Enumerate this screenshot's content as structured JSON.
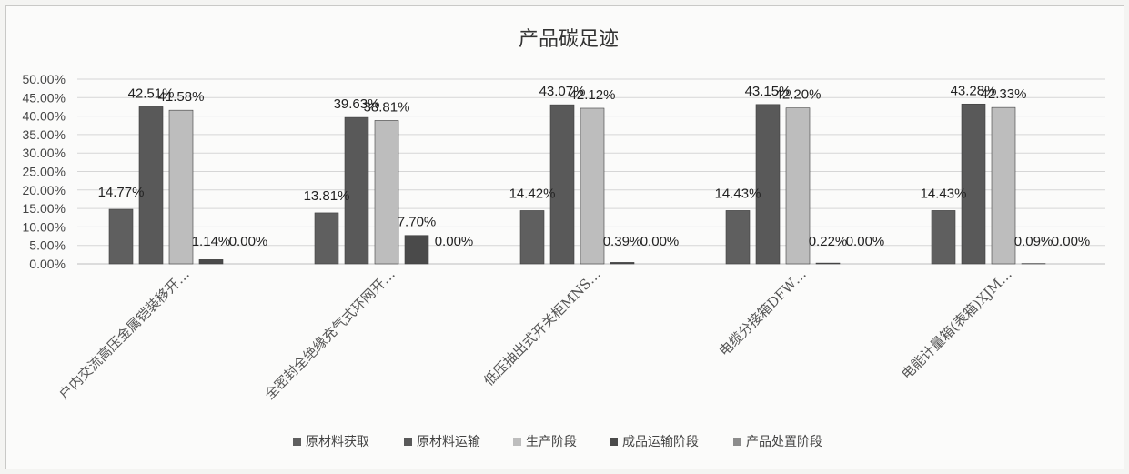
{
  "chart_data": {
    "type": "bar",
    "title": "产品碳足迹",
    "xlabel": "",
    "ylabel": "",
    "ylim": [
      0,
      0.5
    ],
    "y_tick_labels": [
      "0.00%",
      "5.00%",
      "10.00%",
      "15.00%",
      "20.00%",
      "25.00%",
      "30.00%",
      "35.00%",
      "40.00%",
      "45.00%",
      "50.00%"
    ],
    "y_tick_values": [
      0,
      0.05,
      0.1,
      0.15,
      0.2,
      0.25,
      0.3,
      0.35,
      0.4,
      0.45,
      0.5
    ],
    "grid": true,
    "legend_position": "bottom",
    "categories": [
      "户内交流高压金属铠装移开…",
      "全密封全绝缘充气式环网开…",
      "低压抽出式开关柜MNS…",
      "电缆分接箱DFW…",
      "电能计量箱(表箱)XJM…"
    ],
    "series": [
      {
        "name": "原材料获取",
        "color": "#5f5f5f",
        "values": [
          0.1477,
          0.1381,
          0.1442,
          0.1443,
          0.1443
        ],
        "labels": [
          "14.77%",
          "13.81%",
          "14.42%",
          "14.43%",
          "14.43%"
        ]
      },
      {
        "name": "原材料运输",
        "color": "#595959",
        "values": [
          0.4251,
          0.3963,
          0.4307,
          0.4315,
          0.4328
        ],
        "labels": [
          "42.51%",
          "39.63%",
          "43.07%",
          "43.15%",
          "43.28%"
        ]
      },
      {
        "name": "生产阶段",
        "color": "#bdbdbd",
        "values": [
          0.4158,
          0.3881,
          0.4212,
          0.422,
          0.4233
        ],
        "labels": [
          "41.58%",
          "38.81%",
          "42.12%",
          "42.20%",
          "42.33%"
        ]
      },
      {
        "name": "成品运输阶段",
        "color": "#4a4a4a",
        "values": [
          0.0114,
          0.077,
          0.0039,
          0.0022,
          0.0009
        ],
        "labels": [
          "1.14%",
          "7.70%",
          "0.39%",
          "0.22%",
          "0.09%"
        ]
      },
      {
        "name": "产品处置阶段",
        "color": "#8c8c8c",
        "values": [
          0.0,
          0.0,
          0.0,
          0.0,
          0.0
        ],
        "labels": [
          "0.00%",
          "0.00%",
          "0.00%",
          "0.00%",
          "0.00%"
        ]
      }
    ]
  }
}
